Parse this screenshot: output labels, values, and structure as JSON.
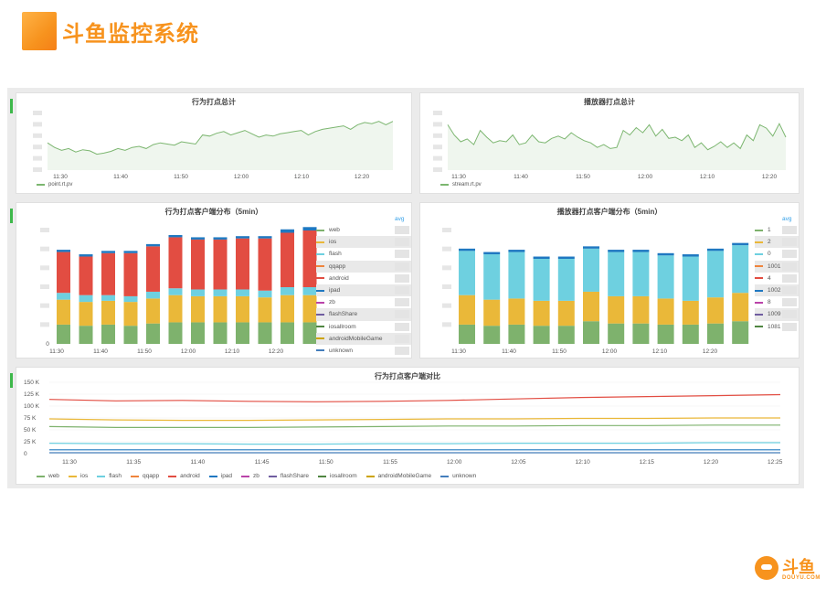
{
  "header": {
    "title": "斗鱼监控系统"
  },
  "panels": {
    "p1": {
      "title": "行为打点总计",
      "x_ticks": [
        "11:30",
        "11:40",
        "11:50",
        "12:00",
        "12:10",
        "12:20"
      ],
      "legend": "point.rt.pv",
      "color": "#7cb670"
    },
    "p2": {
      "title": "播放器打点总计",
      "x_ticks": [
        "11:30",
        "11:40",
        "11:50",
        "12:00",
        "12:10",
        "12:20"
      ],
      "legend": "stream.rt.pv",
      "color": "#7cb670"
    },
    "p3": {
      "title": "行为打点客户端分布（5min）",
      "x_ticks": [
        "11:30",
        "11:40",
        "11:50",
        "12:00",
        "12:10",
        "12:20"
      ],
      "y_zero": "0",
      "avg_label": "avg",
      "legend": [
        {
          "name": "web",
          "color": "#7eb26d",
          "hl": false
        },
        {
          "name": "ios",
          "color": "#eab839",
          "hl": true
        },
        {
          "name": "flash",
          "color": "#6ed0e0",
          "hl": false
        },
        {
          "name": "qqapp",
          "color": "#ef843c",
          "hl": true
        },
        {
          "name": "android",
          "color": "#e24d42",
          "hl": false
        },
        {
          "name": "ipad",
          "color": "#1f78c1",
          "hl": true
        },
        {
          "name": "zb",
          "color": "#ba43a9",
          "hl": false
        },
        {
          "name": "flashShare",
          "color": "#705da0",
          "hl": true
        },
        {
          "name": "iosallroom",
          "color": "#508642",
          "hl": false
        },
        {
          "name": "androidMobileGame",
          "color": "#cca300",
          "hl": true
        },
        {
          "name": "unknown",
          "color": "#447ebc",
          "hl": false
        }
      ]
    },
    "p4": {
      "title": "播放器打点客户端分布（5min）",
      "x_ticks": [
        "11:30",
        "11:40",
        "11:50",
        "12:00",
        "12:10",
        "12:20"
      ],
      "avg_label": "avg",
      "legend": [
        {
          "name": "1",
          "color": "#7eb26d"
        },
        {
          "name": "2",
          "color": "#eab839",
          "hl": true
        },
        {
          "name": "0",
          "color": "#6ed0e0"
        },
        {
          "name": "1001",
          "color": "#ef843c",
          "hl": true
        },
        {
          "name": "4",
          "color": "#e24d42"
        },
        {
          "name": "1002",
          "color": "#1f78c1",
          "hl": true
        },
        {
          "name": "8",
          "color": "#ba43a9"
        },
        {
          "name": "1009",
          "color": "#705da0",
          "hl": true
        },
        {
          "name": "1081",
          "color": "#508642"
        }
      ]
    },
    "p5": {
      "title": "行为打点客户端对比",
      "y_ticks": [
        "150 K",
        "125 K",
        "100 K",
        "75 K",
        "50 K",
        "25 K",
        "0"
      ],
      "x_ticks": [
        "11:30",
        "11:35",
        "11:40",
        "11:45",
        "11:50",
        "11:55",
        "12:00",
        "12:05",
        "12:10",
        "12:15",
        "12:20",
        "12:25"
      ],
      "legend": [
        {
          "name": "web",
          "color": "#7eb26d"
        },
        {
          "name": "ios",
          "color": "#eab839"
        },
        {
          "name": "flash",
          "color": "#6ed0e0"
        },
        {
          "name": "qqapp",
          "color": "#ef843c"
        },
        {
          "name": "android",
          "color": "#e24d42"
        },
        {
          "name": "ipad",
          "color": "#1f78c1"
        },
        {
          "name": "zb",
          "color": "#ba43a9"
        },
        {
          "name": "flashShare",
          "color": "#705da0"
        },
        {
          "name": "iosallroom",
          "color": "#508642"
        },
        {
          "name": "androidMobileGame",
          "color": "#cca300"
        },
        {
          "name": "unknown",
          "color": "#447ebc"
        }
      ]
    }
  },
  "brand": {
    "cn": "斗鱼",
    "en": "DOUYU.COM"
  },
  "chart_data": [
    {
      "type": "line",
      "title": "行为打点总计",
      "series": [
        {
          "name": "point.rt.pv",
          "values": [
            0.48,
            0.4,
            0.35,
            0.38,
            0.32,
            0.36,
            0.34,
            0.28,
            0.3,
            0.33,
            0.38,
            0.35,
            0.4,
            0.42,
            0.38,
            0.45,
            0.48,
            0.46,
            0.44,
            0.5,
            0.48,
            0.46,
            0.62,
            0.6,
            0.65,
            0.68,
            0.62,
            0.66,
            0.7,
            0.64,
            0.58,
            0.62,
            0.6,
            0.64,
            0.66,
            0.68,
            0.7,
            0.62,
            0.68,
            0.72,
            0.74,
            0.76,
            0.78,
            0.72,
            0.8,
            0.84,
            0.82,
            0.86,
            0.8,
            0.86
          ]
        }
      ]
    },
    {
      "type": "line",
      "title": "播放器打点总计",
      "series": [
        {
          "name": "stream.rt.pv",
          "values": [
            0.8,
            0.62,
            0.5,
            0.55,
            0.45,
            0.7,
            0.58,
            0.48,
            0.52,
            0.5,
            0.62,
            0.45,
            0.48,
            0.62,
            0.5,
            0.48,
            0.56,
            0.6,
            0.55,
            0.66,
            0.58,
            0.52,
            0.48,
            0.4,
            0.45,
            0.38,
            0.4,
            0.7,
            0.62,
            0.75,
            0.66,
            0.8,
            0.6,
            0.72,
            0.56,
            0.58,
            0.52,
            0.62,
            0.4,
            0.48,
            0.36,
            0.42,
            0.5,
            0.4,
            0.48,
            0.38,
            0.62,
            0.52,
            0.8,
            0.74,
            0.6,
            0.82,
            0.58
          ]
        }
      ]
    },
    {
      "type": "bar",
      "title": "行为打点客户端分布（5min）",
      "categories": [
        "1",
        "2",
        "3",
        "4",
        "5",
        "6",
        "7",
        "8",
        "9",
        "10",
        "11",
        "12"
      ],
      "series": [
        {
          "name": "web",
          "values": [
            0.17,
            0.16,
            0.17,
            0.16,
            0.18,
            0.19,
            0.19,
            0.19,
            0.19,
            0.19,
            0.19,
            0.19
          ]
        },
        {
          "name": "ios",
          "values": [
            0.22,
            0.21,
            0.21,
            0.21,
            0.22,
            0.24,
            0.23,
            0.23,
            0.23,
            0.22,
            0.24,
            0.24
          ]
        },
        {
          "name": "flash",
          "values": [
            0.06,
            0.06,
            0.05,
            0.05,
            0.06,
            0.06,
            0.06,
            0.06,
            0.06,
            0.06,
            0.07,
            0.07
          ]
        },
        {
          "name": "android",
          "values": [
            0.36,
            0.34,
            0.37,
            0.38,
            0.4,
            0.45,
            0.44,
            0.44,
            0.45,
            0.46,
            0.48,
            0.5
          ]
        },
        {
          "name": "ipad",
          "values": [
            0.02,
            0.02,
            0.02,
            0.02,
            0.02,
            0.02,
            0.02,
            0.02,
            0.02,
            0.02,
            0.03,
            0.03
          ]
        }
      ]
    },
    {
      "type": "bar",
      "title": "播放器打点客户端分布（5min）",
      "categories": [
        "1",
        "2",
        "3",
        "4",
        "5",
        "6",
        "7",
        "8",
        "9",
        "10",
        "11",
        "12"
      ],
      "series": [
        {
          "name": "1",
          "values": [
            0.17,
            0.16,
            0.17,
            0.16,
            0.16,
            0.2,
            0.18,
            0.18,
            0.17,
            0.17,
            0.18,
            0.2
          ]
        },
        {
          "name": "2",
          "values": [
            0.26,
            0.23,
            0.23,
            0.22,
            0.22,
            0.26,
            0.24,
            0.24,
            0.23,
            0.21,
            0.23,
            0.25
          ]
        },
        {
          "name": "0",
          "values": [
            0.39,
            0.4,
            0.41,
            0.37,
            0.37,
            0.38,
            0.39,
            0.39,
            0.38,
            0.39,
            0.41,
            0.42
          ]
        },
        {
          "name": "1002",
          "values": [
            0.02,
            0.02,
            0.02,
            0.02,
            0.02,
            0.02,
            0.02,
            0.02,
            0.02,
            0.02,
            0.02,
            0.02
          ]
        }
      ]
    },
    {
      "type": "line",
      "title": "行为打点客户端对比",
      "ylim": [
        0,
        150000
      ],
      "series": [
        {
          "name": "android",
          "values": [
            114000,
            111000,
            112000,
            110000,
            109000,
            110000,
            112000,
            115000,
            118000,
            120000,
            122000,
            124000
          ]
        },
        {
          "name": "ios",
          "values": [
            73000,
            71000,
            70000,
            70000,
            71000,
            72000,
            73000,
            73000,
            74000,
            74000,
            75000,
            75000
          ]
        },
        {
          "name": "web",
          "values": [
            57000,
            55000,
            55000,
            55000,
            56000,
            57000,
            58000,
            58000,
            59000,
            59000,
            60000,
            60000
          ]
        },
        {
          "name": "flash",
          "values": [
            22000,
            21000,
            21000,
            20000,
            20000,
            21000,
            21000,
            22000,
            22000,
            22000,
            23000,
            23000
          ]
        },
        {
          "name": "ipad",
          "values": [
            8000,
            8000,
            8000,
            8000,
            8000,
            8000,
            8000,
            8000,
            8000,
            8000,
            8000,
            8000
          ]
        },
        {
          "name": "unknown",
          "values": [
            2000,
            2000,
            2000,
            2000,
            2000,
            2000,
            2000,
            2000,
            2000,
            2000,
            2000,
            2000
          ]
        }
      ]
    }
  ]
}
